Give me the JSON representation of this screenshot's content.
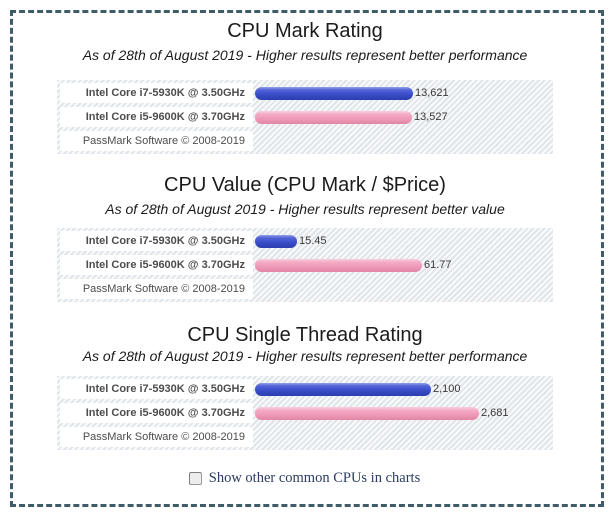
{
  "page": {
    "background": "#ffffff",
    "border_color": "#3f5d68",
    "border_style": "dashed"
  },
  "chart_data": [
    {
      "type": "bar",
      "orientation": "horizontal",
      "title": "CPU Mark Rating",
      "subtitle": "As of 28th of August 2019 - Higher results represent better performance",
      "categories": [
        "Intel Core i7-5930K @ 3.50GHz",
        "Intel Core i5-9600K @ 3.70GHz"
      ],
      "values": [
        13621,
        13527
      ],
      "value_labels": [
        "13,621",
        "13,527"
      ],
      "series_colors": [
        "#3a4ecb",
        "#ee99b8"
      ],
      "xlim": [
        0,
        25000
      ],
      "grid": false,
      "legend": "none",
      "footer": "PassMark Software © 2008-2019"
    },
    {
      "type": "bar",
      "orientation": "horizontal",
      "title": "CPU Value (CPU Mark / $Price)",
      "subtitle": "As of 28th of August 2019 - Higher results represent better value",
      "categories": [
        "Intel Core i7-5930K @ 3.50GHz",
        "Intel Core i5-9600K @ 3.70GHz"
      ],
      "values": [
        15.45,
        61.77
      ],
      "value_labels": [
        "15.45",
        "61.77"
      ],
      "series_colors": [
        "#3a4ecb",
        "#ee99b8"
      ],
      "xlim": [
        0,
        107
      ],
      "grid": false,
      "legend": "none",
      "footer": "PassMark Software © 2008-2019"
    },
    {
      "type": "bar",
      "orientation": "horizontal",
      "title": "CPU Single Thread Rating",
      "subtitle": "As of 28th of August 2019 - Higher results represent better performance",
      "categories": [
        "Intel Core i7-5930K @ 3.50GHz",
        "Intel Core i5-9600K @ 3.70GHz"
      ],
      "values": [
        2100,
        2681
      ],
      "value_labels": [
        "2,100",
        "2,681"
      ],
      "series_colors": [
        "#3a4ecb",
        "#ee99b8"
      ],
      "xlim": [
        0,
        3470
      ],
      "grid": false,
      "legend": "none",
      "footer": "PassMark Software © 2008-2019"
    }
  ],
  "controls": {
    "show_other_cpus_label": "Show other common CPUs in charts",
    "show_other_cpus_checked": false
  }
}
